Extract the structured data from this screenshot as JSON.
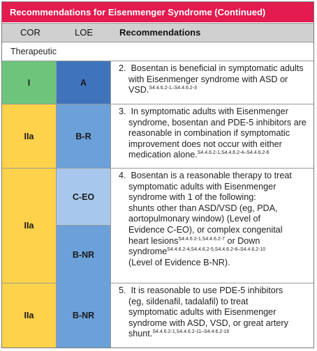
{
  "colors": {
    "title_bg": "#e31b4f",
    "header_bg": "#d0d0d0",
    "cor_I": "#6cc57b",
    "cor_IIa": "#fed24a",
    "loe_A": "#3f74bd",
    "loe_BR": "#6ba0d9",
    "loe_CEO": "#a7c8ec",
    "loe_BNR": "#6ba0d9"
  },
  "table": {
    "title": "Recommendations for Eisenmenger Syndrome (Continued)",
    "headers": {
      "cor": "COR",
      "loe": "LOE",
      "rec": "Recommendations"
    },
    "section": "Therapeutic",
    "rows": [
      {
        "cor": "I",
        "loe": "A",
        "lines": [
          "2.  Bosentan is beneficial in symptomatic adults",
          "with Eisenmenger syndrome with ASD or",
          "VSD."
        ],
        "sup": "S4.4.6.2-1–S4.4.6.2-3"
      },
      {
        "cor": "IIa",
        "loe": "B-R",
        "lines": [
          "3.  In symptomatic adults with Eisenmenger",
          "syndrome, bosentan and PDE-5 inhibitors are",
          "reasonable in combination if symptomatic",
          "improvement does not occur with either",
          "medication alone."
        ],
        "sup": "S4.4.6.2-1,S4.4.6.2-4–S4.4.6.2-6"
      },
      {
        "cor": "IIa",
        "loe_top": "C-EO",
        "loe_bottom": "B-NR",
        "lines": [
          "4.  Bosentan is a reasonable therapy to treat",
          "symptomatic adults with Eisenmenger",
          "syndrome with 1 of the following:",
          "shunts other than ASD/VSD (eg, PDA,",
          "aortopulmonary window) (Level of",
          "Evidence C-EO), or complex congenital",
          "heart lesions",
          " or Down",
          "syndrome",
          "(Level of Evidence B-NR)."
        ],
        "sup_a": "S4.4.6.2-1,S4.4.6.2-7",
        "sup_b": "S4.4.6.2-4,S4.4.6.2-5,S4.4.6.2-8–S4.4.6.2-10"
      },
      {
        "cor": "IIa",
        "loe": "B-NR",
        "lines": [
          "5.  It is reasonable to use PDE-5 inhibitors",
          "(eg, sildenafil, tadalafil) to treat",
          "symptomatic adults with Eisenmenger",
          "syndrome with ASD, VSD, or great artery",
          "shunt."
        ],
        "sup": "S4.4.6.2-1,S4.4.6.2-11–S4.4.6.2-16"
      }
    ]
  }
}
